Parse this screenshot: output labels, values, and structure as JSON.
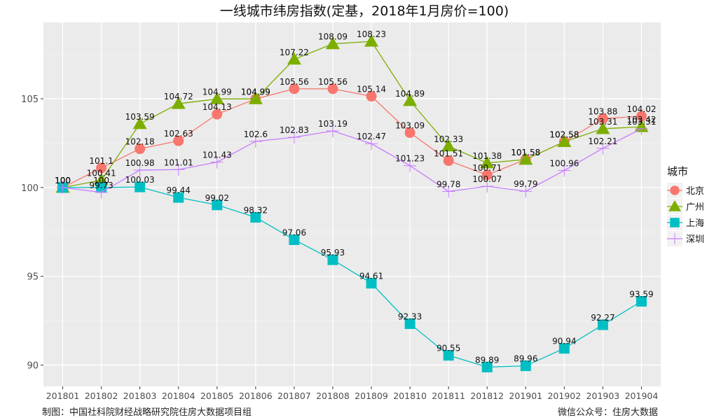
{
  "chart_data": {
    "type": "line",
    "title": "一线城市纬房指数(定基，2018年1月房价=100)",
    "xlabel": "",
    "ylabel": "",
    "categories": [
      "201801",
      "201802",
      "201803",
      "201804",
      "201805",
      "201806",
      "201807",
      "201808",
      "201809",
      "201810",
      "201811",
      "201812",
      "201901",
      "201902",
      "201903",
      "201904"
    ],
    "ylim": [
      88.8,
      109.3
    ],
    "yticks": [
      90,
      95,
      100,
      105
    ],
    "grid": true,
    "legend_title": "城市",
    "legend_position": "right",
    "series": [
      {
        "name": "北京",
        "color": "#F8766D",
        "marker": "circle",
        "values": [
          100,
          101.1,
          102.18,
          102.63,
          104.13,
          104.99,
          105.56,
          105.56,
          105.14,
          103.09,
          101.51,
          100.71,
          101.58,
          102.58,
          103.88,
          104.02
        ]
      },
      {
        "name": "广州",
        "color": "#7CAE00",
        "marker": "triangle",
        "values": [
          100,
          100.41,
          103.59,
          104.72,
          104.99,
          104.99,
          107.22,
          108.09,
          108.23,
          104.89,
          102.33,
          101.38,
          101.58,
          102.58,
          103.31,
          103.42
        ]
      },
      {
        "name": "上海",
        "color": "#00BFC4",
        "marker": "square",
        "values": [
          100,
          100,
          100.03,
          99.44,
          99.02,
          98.32,
          97.06,
          95.93,
          94.61,
          92.33,
          90.55,
          89.89,
          89.96,
          90.94,
          92.27,
          93.59
        ]
      },
      {
        "name": "深圳",
        "color": "#C77CFF",
        "marker": "cross",
        "values": [
          100,
          99.73,
          100.98,
          101.01,
          101.43,
          102.6,
          102.83,
          103.19,
          102.47,
          101.23,
          99.78,
          100.07,
          99.79,
          100.96,
          102.21,
          103.31
        ]
      }
    ]
  },
  "footer": {
    "left": "制图：中国社科院财经战略研究院住房大数据项目组",
    "right": "微信公众号：住房大数据"
  }
}
